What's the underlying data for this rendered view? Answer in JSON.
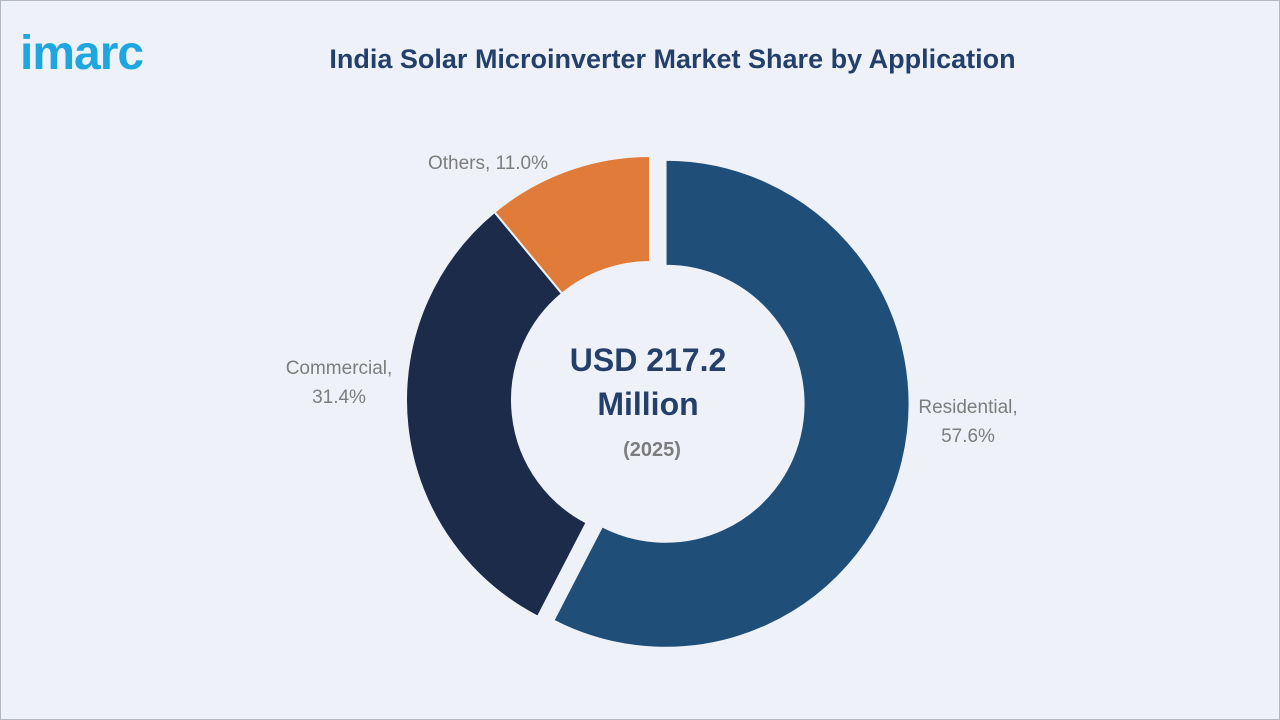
{
  "brand": {
    "logo_text": "imarc",
    "logo_color": "#1ea6e0"
  },
  "chart_data": {
    "type": "pie",
    "variant": "donut",
    "title": "India Solar Microinverter Market Share by Application",
    "center_label": {
      "line1": "USD 217.2",
      "line2": "Million",
      "line3": "(2025)"
    },
    "series": [
      {
        "name": "Residential",
        "value": 57.6,
        "label_line1": "Residential,",
        "label_line2": "57.6%",
        "color": "#1f4e79",
        "exploded": true
      },
      {
        "name": "Commercial",
        "value": 31.4,
        "label_line1": "Commercial,",
        "label_line2": "31.4%",
        "color": "#1c2b4a",
        "exploded": false
      },
      {
        "name": "Others",
        "value": 11.0,
        "label_line1": "Others, 11.0%",
        "label_line2": "",
        "color": "#e07b39",
        "exploded": false
      }
    ],
    "legend": "none"
  }
}
